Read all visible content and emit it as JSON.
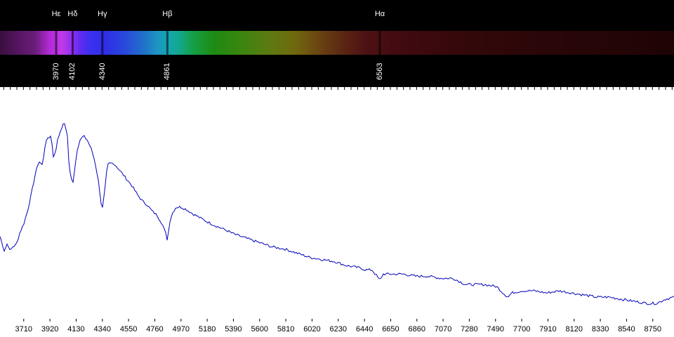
{
  "colors": {
    "background": "#000000",
    "plot_background": "#ffffff",
    "series_line": "#0000bb",
    "text": "#ffffff"
  },
  "spectral_lines": [
    {
      "name": "Hε",
      "wavelength": "3970"
    },
    {
      "name": "Hδ",
      "wavelength": "4102"
    },
    {
      "name": "Hγ",
      "wavelength": "4340"
    },
    {
      "name": "Hβ",
      "wavelength": "4861"
    },
    {
      "name": "Hα",
      "wavelength": "6563"
    }
  ],
  "chart_data": {
    "type": "line",
    "title": "",
    "xlabel": "",
    "ylabel": "",
    "xlim": [
      3520,
      8920
    ],
    "ylim": [
      0,
      1.0
    ],
    "grid": false,
    "x_ticks": [
      3710,
      3920,
      4130,
      4340,
      4550,
      4760,
      4970,
      5180,
      5390,
      5600,
      5810,
      6020,
      6230,
      6440,
      6650,
      6860,
      7070,
      7280,
      7490,
      7700,
      7910,
      8120,
      8330,
      8540,
      8750
    ],
    "series": [
      {
        "x": [
          3520,
          3555,
          3580,
          3600,
          3620,
          3650,
          3680,
          3710,
          3740,
          3770,
          3800,
          3830,
          3860,
          3880,
          3900,
          3930,
          3950,
          3970,
          3985,
          4000,
          4020,
          4040,
          4060,
          4075,
          4090,
          4102,
          4120,
          4140,
          4160,
          4190,
          4220,
          4250,
          4280,
          4310,
          4330,
          4340,
          4360,
          4380,
          4400,
          4430,
          4460,
          4500,
          4540,
          4580,
          4620,
          4660,
          4700,
          4740,
          4780,
          4820,
          4850,
          4861,
          4880,
          4900,
          4930,
          4970,
          5010,
          5060,
          5120,
          5180,
          5250,
          5330,
          5400,
          5500,
          5600,
          5700,
          5800,
          5900,
          6000,
          6100,
          6200,
          6300,
          6400,
          6450,
          6500,
          6540,
          6563,
          6590,
          6650,
          6750,
          6850,
          6950,
          7050,
          7150,
          7250,
          7300,
          7400,
          7500,
          7550,
          7590,
          7620,
          7700,
          7800,
          7900,
          8000,
          8100,
          8200,
          8300,
          8400,
          8500,
          8600,
          8700,
          8780,
          8850,
          8920
        ],
        "y": [
          0.38,
          0.31,
          0.35,
          0.31,
          0.33,
          0.34,
          0.4,
          0.44,
          0.5,
          0.58,
          0.67,
          0.74,
          0.72,
          0.81,
          0.85,
          0.86,
          0.75,
          0.8,
          0.86,
          0.87,
          0.91,
          0.92,
          0.86,
          0.7,
          0.66,
          0.63,
          0.71,
          0.8,
          0.84,
          0.86,
          0.84,
          0.8,
          0.74,
          0.64,
          0.54,
          0.51,
          0.6,
          0.72,
          0.73,
          0.73,
          0.71,
          0.68,
          0.65,
          0.62,
          0.58,
          0.55,
          0.53,
          0.5,
          0.48,
          0.44,
          0.39,
          0.36,
          0.45,
          0.49,
          0.52,
          0.52,
          0.51,
          0.49,
          0.47,
          0.45,
          0.43,
          0.41,
          0.39,
          0.37,
          0.35,
          0.33,
          0.32,
          0.3,
          0.28,
          0.27,
          0.26,
          0.24,
          0.23,
          0.22,
          0.22,
          0.19,
          0.17,
          0.2,
          0.2,
          0.2,
          0.19,
          0.19,
          0.18,
          0.18,
          0.15,
          0.15,
          0.15,
          0.14,
          0.11,
          0.09,
          0.11,
          0.12,
          0.12,
          0.11,
          0.12,
          0.11,
          0.1,
          0.09,
          0.09,
          0.08,
          0.07,
          0.06,
          0.06,
          0.08,
          0.09
        ]
      }
    ]
  }
}
